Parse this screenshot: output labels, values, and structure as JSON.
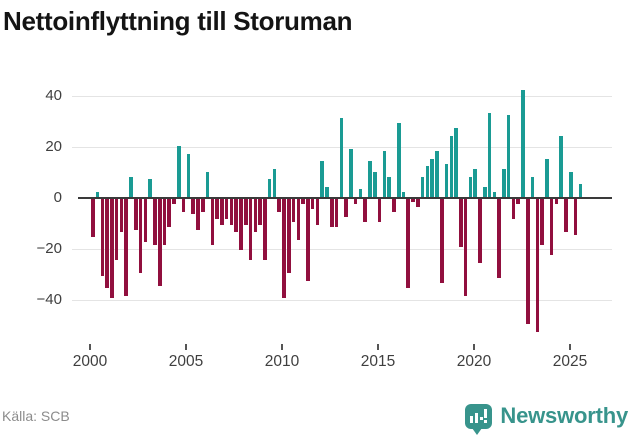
{
  "title": "Nettoinflyttning till Storuman",
  "source": "Källa: SCB",
  "logo": {
    "text": "Newsworthy",
    "icon": "newsworthy-badge-icon"
  },
  "colors": {
    "positive": "#1a9b94",
    "negative": "#910f3e",
    "grid": "#e4e4e4",
    "zero_line": "#3a3a3a",
    "axis_text": "#3f3f3f",
    "title_text": "#141414",
    "source_text": "#8c8c8c",
    "logo_teal": "#38948c"
  },
  "chart_data": {
    "type": "bar",
    "title": "Nettoinflyttning till Storuman",
    "frequency": "quarterly",
    "x_start": {
      "year": 2000,
      "quarter": 1
    },
    "x_end": {
      "year": 2025,
      "quarter": 3
    },
    "values": [
      -15,
      2,
      -30,
      -35,
      -39,
      -24,
      -13,
      -38,
      8,
      -12,
      -29,
      -17,
      7,
      -18,
      -34,
      -18,
      -11,
      -2,
      20,
      -5,
      17,
      -6,
      -12,
      -5,
      10,
      -18,
      -8,
      -10,
      -8,
      -10,
      -13,
      -20,
      -10,
      -24,
      -13,
      -10,
      -24,
      7,
      11,
      -5,
      -39,
      -29,
      -9,
      -16,
      -2,
      -32,
      -4,
      -10,
      14,
      4,
      -11,
      -11,
      31,
      -7,
      19,
      -2,
      3,
      -9,
      14,
      10,
      -9,
      18,
      8,
      -5,
      29,
      2,
      -35,
      -1,
      -3,
      8,
      12,
      15,
      18,
      -33,
      13,
      24,
      27,
      -19,
      -38,
      8,
      11,
      -25,
      4,
      33,
      2,
      -31,
      11,
      32,
      -8,
      -2,
      42,
      -49,
      8,
      -52,
      -18,
      15,
      -22,
      -2,
      24,
      -13,
      10,
      -14,
      5
    ],
    "yticks": [
      {
        "label": "40",
        "value": 40
      },
      {
        "label": "20",
        "value": 20
      },
      {
        "label": "0",
        "value": 0
      },
      {
        "label": "−20",
        "value": -20
      },
      {
        "label": "−40",
        "value": -40
      }
    ],
    "xticks": [
      {
        "label": "2000",
        "year": 2000
      },
      {
        "label": "2005",
        "year": 2005
      },
      {
        "label": "2010",
        "year": 2010
      },
      {
        "label": "2015",
        "year": 2015
      },
      {
        "label": "2020",
        "year": 2020
      },
      {
        "label": "2025",
        "year": 2025
      }
    ],
    "ylim": [
      -55,
      48
    ],
    "grid": "horizontal",
    "legend": "none"
  }
}
